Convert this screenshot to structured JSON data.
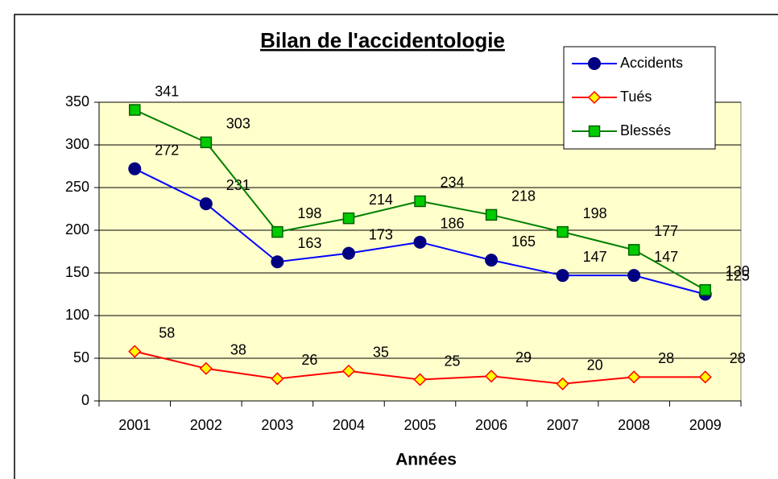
{
  "chart_data": {
    "type": "line",
    "title": "Bilan de l'accidentologie",
    "x_label": "Années",
    "categories": [
      "2001",
      "2002",
      "2003",
      "2004",
      "2005",
      "2006",
      "2007",
      "2008",
      "2009"
    ],
    "series": [
      {
        "name": "Accidents",
        "color": "#0000ff",
        "marker_color": "#000080",
        "marker": "circle",
        "values": [
          272,
          231,
          163,
          173,
          186,
          165,
          147,
          147,
          125
        ]
      },
      {
        "name": "Tués",
        "color": "#ff0000",
        "marker_color": "#ffff00",
        "marker": "diamond",
        "values": [
          58,
          38,
          26,
          35,
          25,
          29,
          20,
          28,
          28
        ]
      },
      {
        "name": "Blessés",
        "color": "#008000",
        "marker_color": "#00cc00",
        "marker": "square",
        "values": [
          341,
          303,
          198,
          214,
          234,
          218,
          198,
          177,
          130
        ]
      }
    ],
    "ylim": [
      0,
      350
    ],
    "yticks": [
      0,
      50,
      100,
      150,
      200,
      250,
      300,
      350
    ],
    "grid": true,
    "legend": "upper right",
    "plot_background": "#ffffcc"
  }
}
